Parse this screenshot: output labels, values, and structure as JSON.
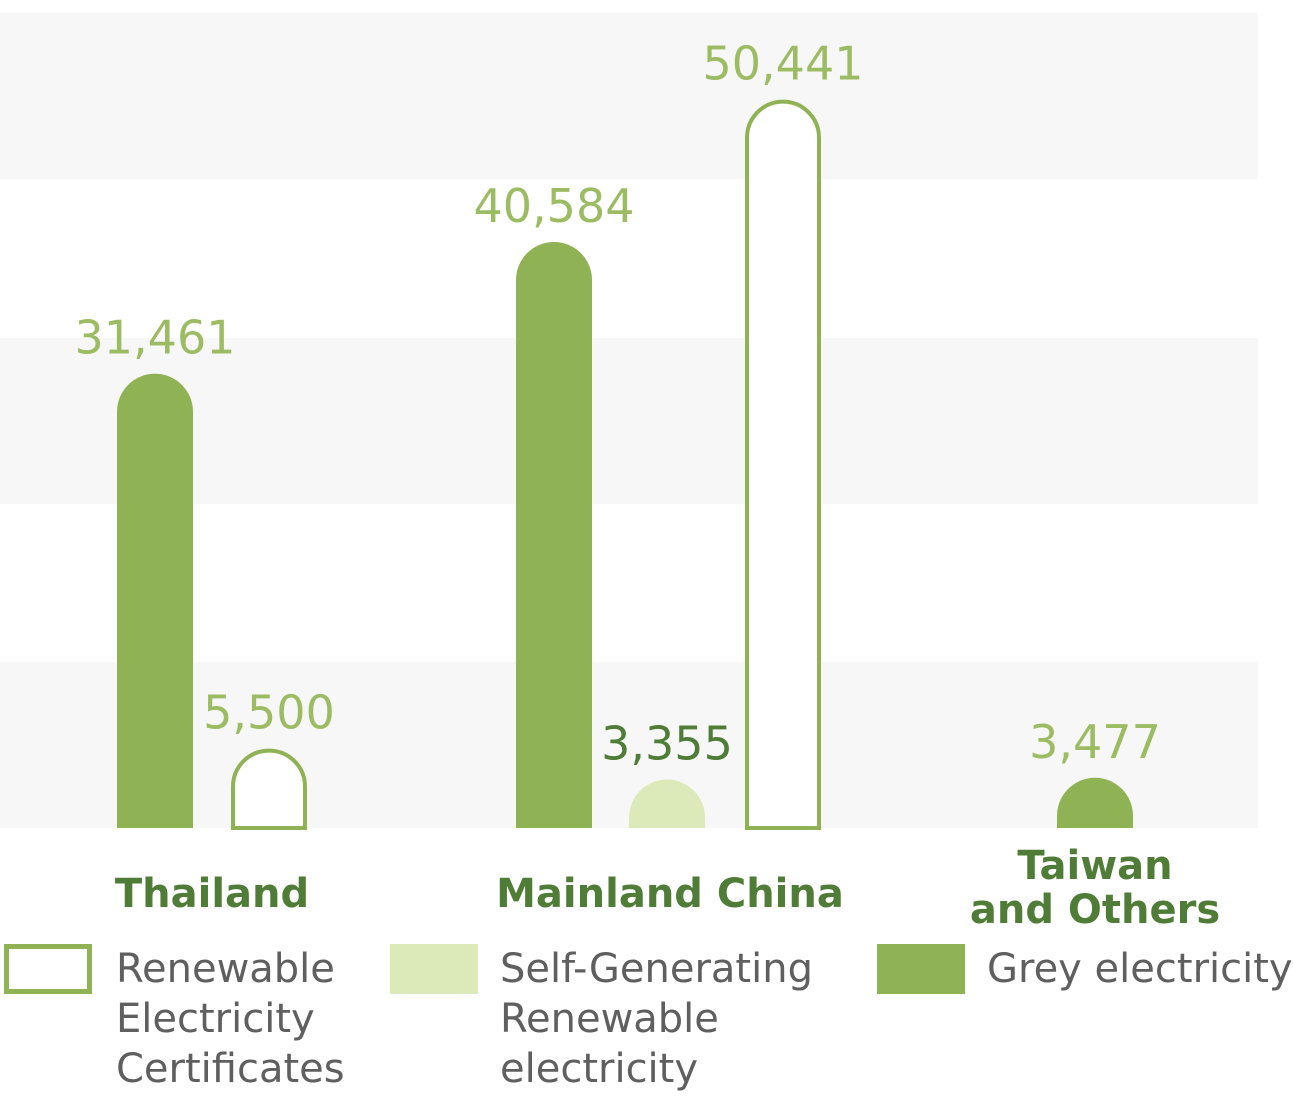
{
  "chart_data": {
    "type": "bar",
    "categories": [
      "Thailand",
      "Mainland China",
      "Taiwan\nand Others"
    ],
    "series": [
      {
        "name": "Grey electricity",
        "values": [
          31461,
          40584,
          3477
        ]
      },
      {
        "name": "Self-Generating Renewable electricity",
        "values": [
          null,
          3355,
          null
        ]
      },
      {
        "name": "Renewable Electricity Certificates",
        "values": [
          5500,
          50441,
          null
        ]
      }
    ],
    "value_labels": [
      {
        "category": "Thailand",
        "series": "Grey electricity",
        "text": "31,461"
      },
      {
        "category": "Thailand",
        "series": "Renewable Electricity Certificates",
        "text": "5,500"
      },
      {
        "category": "Mainland China",
        "series": "Grey electricity",
        "text": "40,584"
      },
      {
        "category": "Mainland China",
        "series": "Self-Generating Renewable electricity",
        "text": "3,355"
      },
      {
        "category": "Mainland China",
        "series": "Renewable Electricity Certificates",
        "text": "50,441"
      },
      {
        "category": "Taiwan\nand Others",
        "series": "Grey electricity",
        "text": "3,477"
      }
    ],
    "ylim": [
      0,
      55000
    ],
    "grid_bands": true,
    "legend_position": "bottom",
    "colors": {
      "grey": "#8fb254",
      "self": "#dce9b9",
      "cert_outline": "#8fb254",
      "label_light": "#9cbc63",
      "label_dark": "#4f7c36",
      "band": "#f7f7f7"
    }
  },
  "categories_display": {
    "thailand": "Thailand",
    "mainland": "Mainland China",
    "taiwan_line1": "Taiwan",
    "taiwan_line2": "and Others"
  },
  "legend": {
    "certificates": [
      "Renewable",
      "Electricity",
      "Certificates"
    ],
    "self_generating": [
      "Self-Generating",
      "Renewable",
      "electricity"
    ],
    "grey": "Grey electricity"
  }
}
